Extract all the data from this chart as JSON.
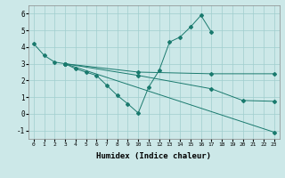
{
  "xlabel": "Humidex (Indice chaleur)",
  "ylabel": "",
  "bg_color": "#cce8e8",
  "line_color": "#1a7a6e",
  "xlim": [
    -0.5,
    23.5
  ],
  "ylim": [
    -1.5,
    6.5
  ],
  "xticks": [
    0,
    1,
    2,
    3,
    4,
    5,
    6,
    7,
    8,
    9,
    10,
    11,
    12,
    13,
    14,
    15,
    16,
    17,
    18,
    19,
    20,
    21,
    22,
    23
  ],
  "yticks": [
    -1,
    0,
    1,
    2,
    3,
    4,
    5,
    6
  ],
  "line0_x": [
    0,
    1,
    2,
    3,
    4,
    5,
    6,
    7,
    8,
    9,
    10,
    11,
    12,
    13,
    14,
    15,
    16,
    17
  ],
  "line0_y": [
    4.2,
    3.5,
    3.1,
    3.0,
    2.7,
    2.5,
    2.3,
    1.7,
    1.1,
    0.6,
    0.05,
    1.6,
    2.6,
    4.3,
    4.6,
    5.2,
    5.9,
    4.9
  ],
  "line1_x": [
    3,
    10,
    17,
    23
  ],
  "line1_y": [
    3.0,
    2.5,
    2.4,
    2.4
  ],
  "line2_x": [
    3,
    10,
    17,
    20,
    23
  ],
  "line2_y": [
    3.0,
    2.3,
    1.5,
    0.8,
    0.75
  ],
  "line3_x": [
    3,
    23
  ],
  "line3_y": [
    3.0,
    -1.1
  ]
}
